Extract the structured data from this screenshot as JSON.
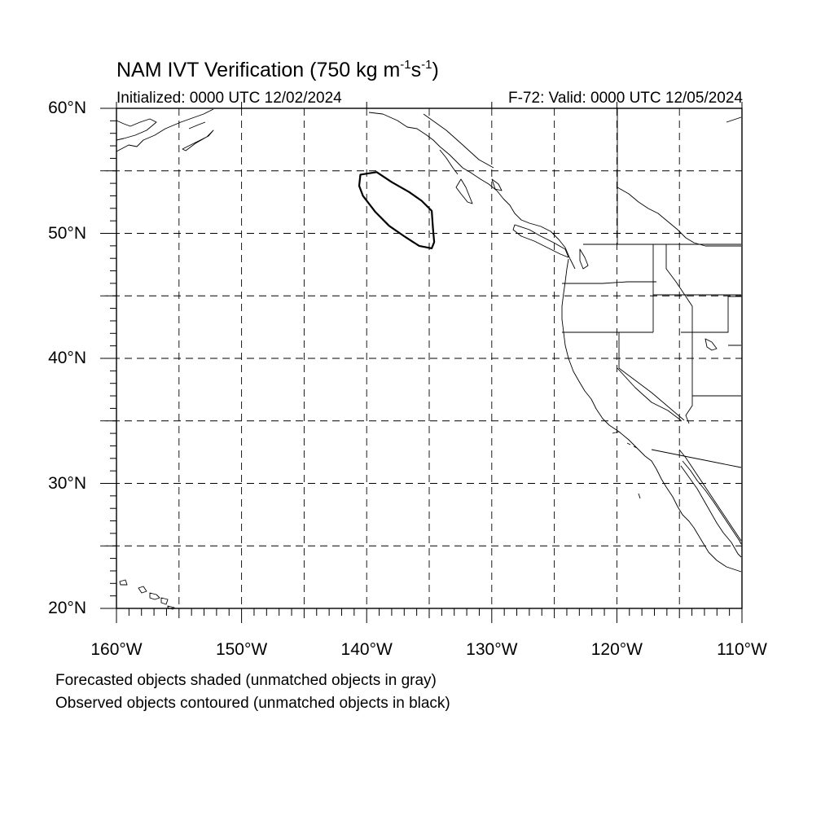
{
  "title": {
    "main": "NAM IVT Verification (750 kg m",
    "exp1": "-1",
    "mid": "s",
    "exp2": "-1",
    "end": ")"
  },
  "init_text": "Initialized: 0000 UTC 12/02/2024",
  "valid_text": "F-72: Valid: 0000 UTC 12/05/2024",
  "map": {
    "lon_range": [
      -160,
      -110
    ],
    "lat_range": [
      20,
      60
    ],
    "grid": true,
    "grid_style": "dashed",
    "lat_labels": [
      "60°N",
      "50°N",
      "40°N",
      "30°N",
      "20°N"
    ],
    "lon_labels": [
      "160°W",
      "150°W",
      "140°W",
      "130°W",
      "120°W",
      "110°W"
    ],
    "observed_objects": [
      {
        "matched": false,
        "outline_color": "#000000",
        "points": [
          [
            -140.5,
            54.7
          ],
          [
            -139.2,
            54.9
          ],
          [
            -138.0,
            54.1
          ],
          [
            -136.6,
            53.3
          ],
          [
            -135.6,
            52.6
          ],
          [
            -134.8,
            51.8
          ],
          [
            -134.7,
            50.4
          ],
          [
            -134.6,
            49.3
          ],
          [
            -134.8,
            48.8
          ],
          [
            -135.8,
            49.0
          ],
          [
            -136.9,
            49.7
          ],
          [
            -138.2,
            50.6
          ],
          [
            -139.3,
            51.7
          ],
          [
            -140.3,
            53.0
          ],
          [
            -140.6,
            53.8
          ]
        ]
      }
    ]
  },
  "notes": [
    "Forecasted objects shaded (unmatched objects in gray)",
    "Observed objects contoured (unmatched objects in black)"
  ]
}
